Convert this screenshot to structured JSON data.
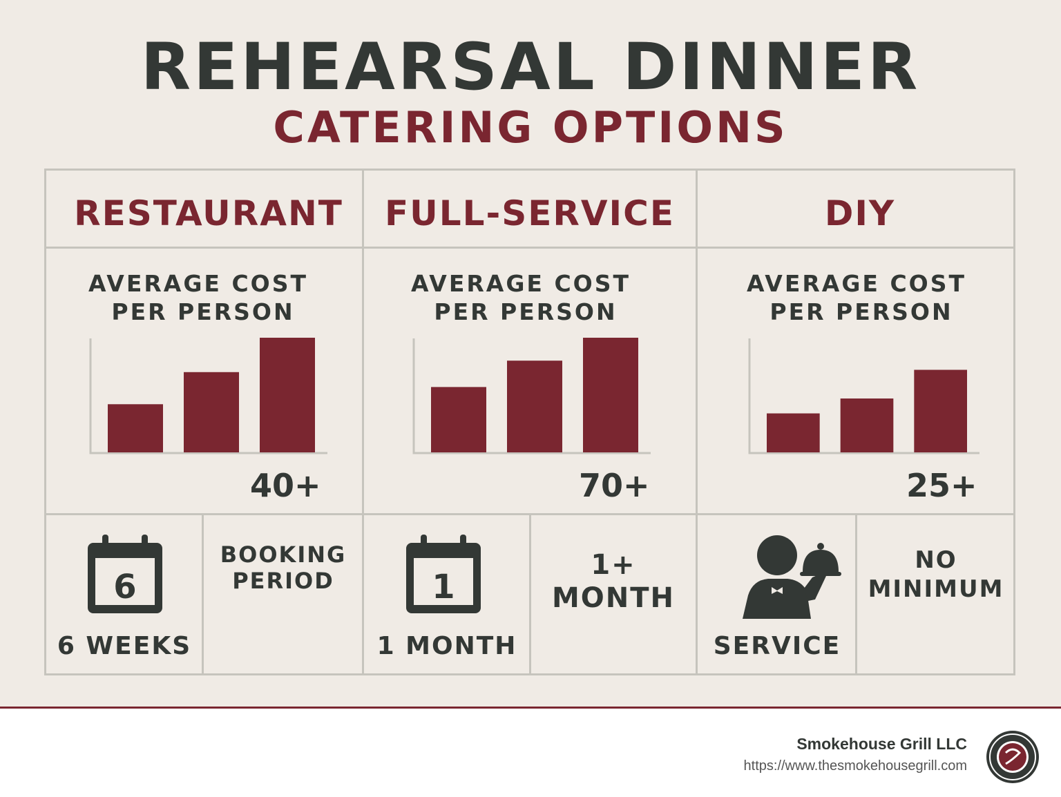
{
  "title": "REHEARSAL DINNER",
  "subtitle": "CATERING OPTIONS",
  "columns": [
    {
      "heading": "RESTAURANT",
      "cost_label_line1": "AVERAGE COST",
      "cost_label_line2": "PER PERSON",
      "cost": "40+",
      "icon": "calendar-icon",
      "icon_text": "6",
      "bottom_label": "6 WEEKS",
      "side_label_line1": "BOOKING",
      "side_label_line2": "PERIOD"
    },
    {
      "heading": "FULL-SERVICE",
      "cost_label_line1": "AVERAGE COST",
      "cost_label_line2": "PER PERSON",
      "cost": "70+",
      "icon": "calendar-icon",
      "icon_text": "1",
      "bottom_label": "1 MONTH",
      "side_label_line1": "1+",
      "side_label_line2": "MONTH"
    },
    {
      "heading": "DIY",
      "cost_label_line1": "AVERAGE COST",
      "cost_label_line2": "PER PERSON",
      "cost": "25+",
      "icon": "waiter-icon",
      "bottom_label": "SERVICE",
      "side_label_line1": "NO",
      "side_label_line2": "MINIMUM"
    }
  ],
  "chart_data": [
    {
      "type": "bar",
      "values": [
        42,
        70,
        100
      ],
      "ylim": [
        0,
        100
      ],
      "color": "#7a2630"
    },
    {
      "type": "bar",
      "values": [
        57,
        80,
        100
      ],
      "ylim": [
        0,
        100
      ],
      "color": "#7a2630"
    },
    {
      "type": "bar",
      "values": [
        34,
        47,
        72
      ],
      "ylim": [
        0,
        100
      ],
      "color": "#7a2630"
    }
  ],
  "footer": {
    "company": "Smokehouse Grill LLC",
    "url": "https://www.thesmokehousegrill.com",
    "logo": "smokehouse-grill-logo"
  },
  "colors": {
    "accent": "#7a2630",
    "text": "#333835",
    "background": "#f0ebe5",
    "grid": "#c6c4bd"
  }
}
